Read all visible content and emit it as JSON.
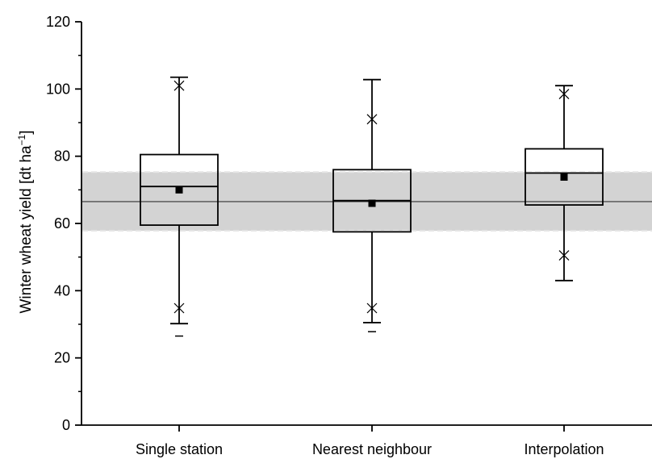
{
  "chart_data": {
    "type": "box",
    "title": "",
    "xlabel": "",
    "ylabel": {
      "main": "Winter wheat yield [dt ha",
      "superscript": "−1",
      "close": "]"
    },
    "ylim": [
      0,
      120
    ],
    "yticks": [
      "0",
      "20",
      "40",
      "60",
      "80",
      "100",
      "120"
    ],
    "categories": [
      "Single station",
      "Nearest neighbour",
      "Interpolation"
    ],
    "boxes": [
      {
        "name": "Single station",
        "whisker_low": 30.2,
        "q1": 59.5,
        "median": 71.0,
        "q3": 80.5,
        "whisker_high": 103.5,
        "mean": 70.0,
        "p1": 34.8,
        "p99": 101.0,
        "min": 26.5
      },
      {
        "name": "Nearest neighbour",
        "whisker_low": 30.5,
        "q1": 57.5,
        "median": 66.8,
        "q3": 76.0,
        "whisker_high": 102.8,
        "mean": 66.0,
        "p1": 34.8,
        "p99": 91.0,
        "min": 27.8
      },
      {
        "name": "Interpolation",
        "whisker_low": 43.0,
        "q1": 65.5,
        "median": 75.0,
        "q3": 82.2,
        "whisker_high": 101.0,
        "mean": 73.8,
        "p1": 50.5,
        "p99": 98.5
      }
    ],
    "reference": {
      "line": 66.5,
      "band_low": 57.8,
      "band_high": 75.3
    },
    "colors": {
      "band": "#d3d3d3",
      "band_edge": "#e6e6e6",
      "line": "#000000"
    }
  }
}
